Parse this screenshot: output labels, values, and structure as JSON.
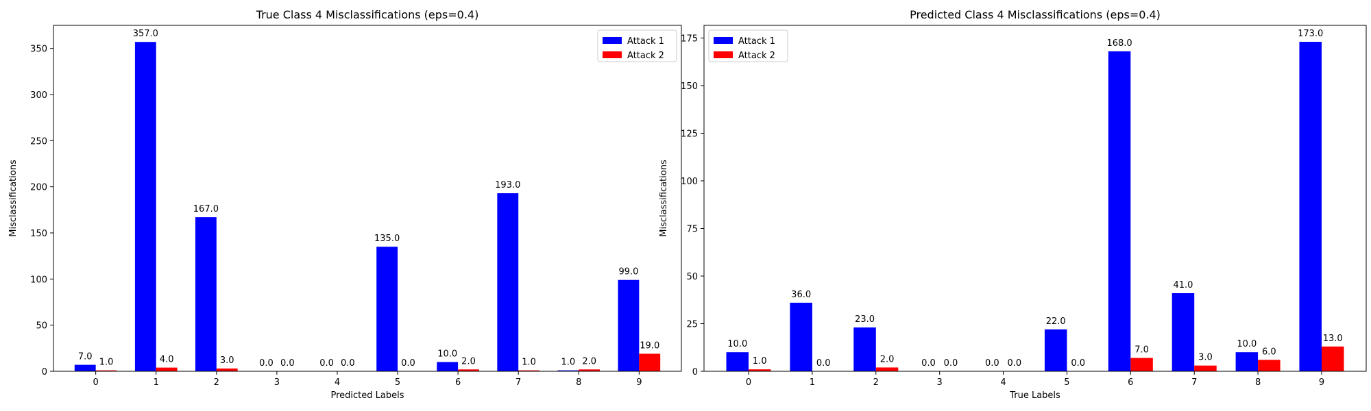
{
  "chart_data": [
    {
      "type": "bar",
      "title": "True Class 4 Misclassifications (eps=0.4)",
      "xlabel": "Predicted Labels",
      "ylabel": "Misclassifications",
      "categories": [
        "0",
        "1",
        "2",
        "3",
        "4",
        "5",
        "6",
        "7",
        "8",
        "9"
      ],
      "series": [
        {
          "name": "Attack 1",
          "color": "#0000ff",
          "values": [
            7,
            357,
            167,
            0,
            0,
            135,
            10,
            193,
            1,
            99
          ]
        },
        {
          "name": "Attack 2",
          "color": "#ff0000",
          "values": [
            1,
            4,
            3,
            0,
            0,
            0,
            2,
            1,
            2,
            19
          ]
        }
      ],
      "data_labels": [
        [
          "7.0",
          "357.0",
          "167.0",
          "0.0",
          "0.0",
          "135.0",
          "10.0",
          "193.0",
          "1.0",
          "99.0"
        ],
        [
          "1.0",
          "4.0",
          "3.0",
          "0.0",
          "0.0",
          "0.0",
          "2.0",
          "1.0",
          "2.0",
          "19.0"
        ]
      ],
      "ylim": [
        0,
        375
      ],
      "yticks": [
        "0",
        "50",
        "100",
        "150",
        "200",
        "250",
        "300",
        "350"
      ],
      "grid": false,
      "legend_position": "top-right"
    },
    {
      "type": "bar",
      "title": "Predicted Class 4 Misclassifications (eps=0.4)",
      "xlabel": "True Labels",
      "ylabel": "Misclassifications",
      "categories": [
        "0",
        "1",
        "2",
        "3",
        "4",
        "5",
        "6",
        "7",
        "8",
        "9"
      ],
      "series": [
        {
          "name": "Attack 1",
          "color": "#0000ff",
          "values": [
            10,
            36,
            23,
            0,
            0,
            22,
            168,
            41,
            10,
            173
          ]
        },
        {
          "name": "Attack 2",
          "color": "#ff0000",
          "values": [
            1,
            0,
            2,
            0,
            0,
            0,
            7,
            3,
            6,
            13
          ]
        }
      ],
      "data_labels": [
        [
          "10.0",
          "36.0",
          "23.0",
          "0.0",
          "0.0",
          "22.0",
          "168.0",
          "41.0",
          "10.0",
          "173.0"
        ],
        [
          "1.0",
          "0.0",
          "2.0",
          "0.0",
          "0.0",
          "0.0",
          "7.0",
          "3.0",
          "6.0",
          "13.0"
        ]
      ],
      "ylim": [
        0,
        181.65
      ],
      "yticks": [
        "0",
        "25",
        "50",
        "75",
        "100",
        "125",
        "150",
        "175"
      ],
      "grid": false,
      "legend_position": "top-left"
    }
  ]
}
